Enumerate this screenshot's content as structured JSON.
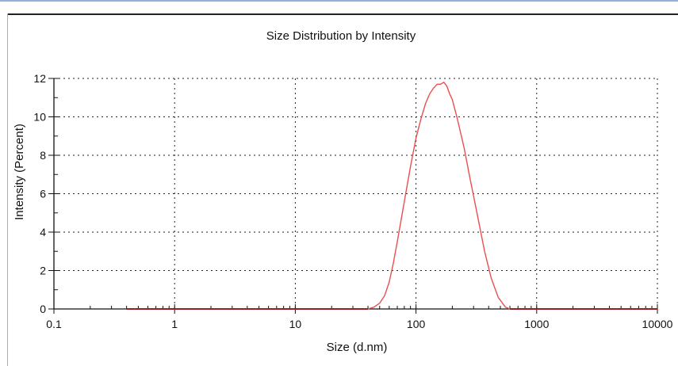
{
  "chart_data": {
    "type": "line",
    "title": "Size Distribution by Intensity",
    "xlabel": "Size (d.nm)",
    "ylabel": "Intensity (Percent)",
    "x_scale": "log",
    "xlim": [
      0.1,
      10000
    ],
    "ylim": [
      0,
      12
    ],
    "x_ticks": [
      0.1,
      1,
      10,
      100,
      1000,
      10000
    ],
    "x_tick_labels": [
      "0.1",
      "1",
      "10",
      "100",
      "1000",
      "10000"
    ],
    "y_ticks": [
      0,
      2,
      4,
      6,
      8,
      10,
      12
    ],
    "y_tick_labels": [
      "0",
      "2",
      "4",
      "6",
      "8",
      "10",
      "12"
    ],
    "grid": true,
    "line_color": "#e8504f",
    "baseline_color": "#9b1c1c",
    "series": [
      {
        "x": [
          0.4,
          1,
          5,
          10,
          20,
          30,
          40,
          45,
          50,
          55,
          60,
          65,
          70,
          80,
          90,
          100,
          110,
          120,
          130,
          140,
          150,
          160,
          170,
          180,
          190,
          200,
          220,
          250,
          280,
          320,
          370,
          420,
          480,
          550,
          600,
          1000,
          5000,
          10000
        ],
        "y": [
          0,
          0,
          0,
          0,
          0,
          0,
          0,
          0.1,
          0.3,
          0.7,
          1.4,
          2.4,
          3.5,
          5.6,
          7.4,
          8.9,
          9.9,
          10.7,
          11.2,
          11.5,
          11.7,
          11.7,
          11.8,
          11.6,
          11.2,
          10.9,
          9.9,
          8.4,
          6.8,
          5.0,
          3.0,
          1.6,
          0.6,
          0.1,
          0,
          0,
          0,
          0
        ]
      }
    ]
  }
}
